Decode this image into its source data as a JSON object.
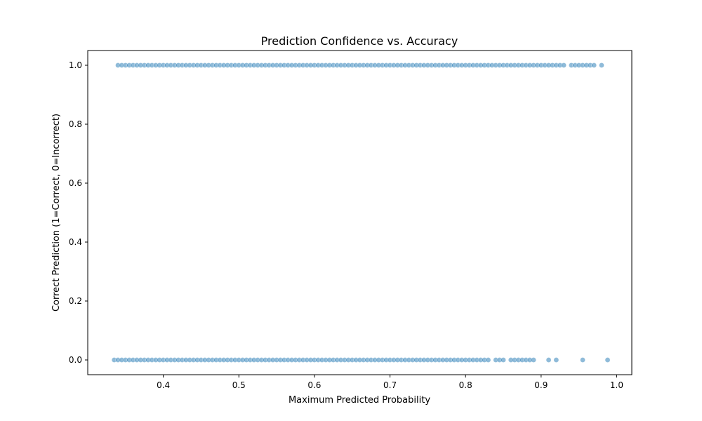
{
  "chart_data": {
    "type": "scatter",
    "title": "Prediction Confidence vs. Accuracy",
    "xlabel": "Maximum Predicted Probability",
    "ylabel": "Correct Prediction (1=Correct, 0=Incorrect)",
    "xlim": [
      0.3,
      1.02
    ],
    "ylim": [
      -0.05,
      1.05
    ],
    "xticks": [
      "0.4",
      "0.5",
      "0.6",
      "0.7",
      "0.8",
      "0.9",
      "1.0"
    ],
    "yticks": [
      "0.0",
      "0.2",
      "0.4",
      "0.6",
      "0.8",
      "1.0"
    ],
    "grid": false,
    "marker_color": "#1f77b4",
    "marker_opacity": 0.5,
    "series": [
      {
        "values_correct_y": 1,
        "x_correct": [
          0.34,
          0.345,
          0.35,
          0.355,
          0.36,
          0.365,
          0.37,
          0.375,
          0.38,
          0.385,
          0.39,
          0.395,
          0.4,
          0.405,
          0.41,
          0.415,
          0.42,
          0.425,
          0.43,
          0.435,
          0.44,
          0.445,
          0.45,
          0.455,
          0.46,
          0.465,
          0.47,
          0.475,
          0.48,
          0.485,
          0.49,
          0.495,
          0.5,
          0.505,
          0.51,
          0.515,
          0.52,
          0.525,
          0.53,
          0.535,
          0.54,
          0.545,
          0.55,
          0.555,
          0.56,
          0.565,
          0.57,
          0.575,
          0.58,
          0.585,
          0.59,
          0.595,
          0.6,
          0.605,
          0.61,
          0.615,
          0.62,
          0.625,
          0.63,
          0.635,
          0.64,
          0.645,
          0.65,
          0.655,
          0.66,
          0.665,
          0.67,
          0.675,
          0.68,
          0.685,
          0.69,
          0.695,
          0.7,
          0.705,
          0.71,
          0.715,
          0.72,
          0.725,
          0.73,
          0.735,
          0.74,
          0.745,
          0.75,
          0.755,
          0.76,
          0.765,
          0.77,
          0.775,
          0.78,
          0.785,
          0.79,
          0.795,
          0.8,
          0.805,
          0.81,
          0.815,
          0.82,
          0.825,
          0.83,
          0.835,
          0.84,
          0.845,
          0.85,
          0.855,
          0.86,
          0.865,
          0.87,
          0.875,
          0.88,
          0.885,
          0.89,
          0.895,
          0.9,
          0.905,
          0.91,
          0.915,
          0.92,
          0.925,
          0.93,
          0.94,
          0.945,
          0.95,
          0.955,
          0.96,
          0.965,
          0.97,
          0.98
        ],
        "x_incorrect": [
          0.335,
          0.34,
          0.345,
          0.35,
          0.355,
          0.36,
          0.365,
          0.37,
          0.375,
          0.38,
          0.385,
          0.39,
          0.395,
          0.4,
          0.405,
          0.41,
          0.415,
          0.42,
          0.425,
          0.43,
          0.435,
          0.44,
          0.445,
          0.45,
          0.455,
          0.46,
          0.465,
          0.47,
          0.475,
          0.48,
          0.485,
          0.49,
          0.495,
          0.5,
          0.505,
          0.51,
          0.515,
          0.52,
          0.525,
          0.53,
          0.535,
          0.54,
          0.545,
          0.55,
          0.555,
          0.56,
          0.565,
          0.57,
          0.575,
          0.58,
          0.585,
          0.59,
          0.595,
          0.6,
          0.605,
          0.61,
          0.615,
          0.62,
          0.625,
          0.63,
          0.635,
          0.64,
          0.645,
          0.65,
          0.655,
          0.66,
          0.665,
          0.67,
          0.675,
          0.68,
          0.685,
          0.69,
          0.695,
          0.7,
          0.705,
          0.71,
          0.715,
          0.72,
          0.725,
          0.73,
          0.735,
          0.74,
          0.745,
          0.75,
          0.755,
          0.76,
          0.765,
          0.77,
          0.775,
          0.78,
          0.785,
          0.79,
          0.795,
          0.8,
          0.805,
          0.81,
          0.815,
          0.82,
          0.825,
          0.83,
          0.84,
          0.845,
          0.85,
          0.86,
          0.865,
          0.87,
          0.875,
          0.88,
          0.885,
          0.89,
          0.91,
          0.92,
          0.955,
          0.988
        ]
      }
    ]
  }
}
